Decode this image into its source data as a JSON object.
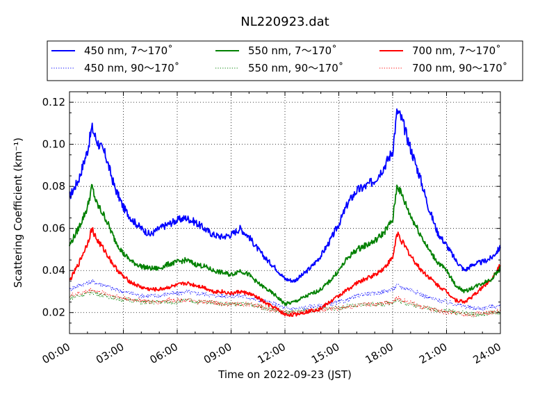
{
  "chart_data": {
    "type": "line",
    "title": "NL220923.dat",
    "xlabel": "Time on 2022-09-23 (JST)",
    "ylabel": "Scattering Coefficient (km⁻¹)",
    "xlim": [
      "00:00",
      "24:00"
    ],
    "ylim": [
      0.01,
      0.125
    ],
    "grid": true,
    "legend_position": "top",
    "x_ticks": [
      "00:00",
      "03:00",
      "06:00",
      "09:00",
      "12:00",
      "15:00",
      "18:00",
      "21:00",
      "24:00"
    ],
    "y_ticks": [
      "0.02",
      "0.04",
      "0.06",
      "0.08",
      "0.10",
      "0.12"
    ],
    "x": [
      "00:00",
      "00:30",
      "01:00",
      "01:15",
      "01:30",
      "02:00",
      "02:30",
      "03:00",
      "03:30",
      "04:00",
      "04:30",
      "05:00",
      "05:30",
      "06:00",
      "06:30",
      "07:00",
      "07:30",
      "08:00",
      "08:30",
      "09:00",
      "09:30",
      "10:00",
      "10:30",
      "11:00",
      "11:30",
      "12:00",
      "12:30",
      "13:00",
      "13:30",
      "14:00",
      "14:30",
      "15:00",
      "15:30",
      "16:00",
      "16:30",
      "17:00",
      "17:30",
      "18:00",
      "18:15",
      "18:30",
      "19:00",
      "19:30",
      "20:00",
      "20:30",
      "21:00",
      "21:30",
      "22:00",
      "22:30",
      "23:00",
      "23:30",
      "24:00"
    ],
    "series": [
      {
        "name": "450 nm, 7～170˚",
        "color": "#0000ff",
        "style": "solid",
        "values": [
          0.075,
          0.083,
          0.097,
          0.108,
          0.102,
          0.095,
          0.08,
          0.07,
          0.064,
          0.06,
          0.057,
          0.06,
          0.062,
          0.064,
          0.065,
          0.063,
          0.06,
          0.057,
          0.056,
          0.057,
          0.06,
          0.056,
          0.05,
          0.045,
          0.041,
          0.036,
          0.035,
          0.038,
          0.042,
          0.047,
          0.054,
          0.062,
          0.072,
          0.078,
          0.08,
          0.083,
          0.089,
          0.097,
          0.116,
          0.112,
          0.098,
          0.085,
          0.07,
          0.058,
          0.052,
          0.045,
          0.04,
          0.043,
          0.044,
          0.046,
          0.051
        ]
      },
      {
        "name": "450 nm, 90～170˚",
        "color": "#0000ff",
        "style": "dotted",
        "values": [
          0.031,
          0.033,
          0.034,
          0.035,
          0.034,
          0.033,
          0.031,
          0.03,
          0.029,
          0.028,
          0.028,
          0.028,
          0.029,
          0.029,
          0.03,
          0.029,
          0.029,
          0.028,
          0.028,
          0.028,
          0.028,
          0.027,
          0.026,
          0.025,
          0.024,
          0.022,
          0.022,
          0.022,
          0.023,
          0.023,
          0.024,
          0.025,
          0.026,
          0.028,
          0.029,
          0.029,
          0.03,
          0.031,
          0.033,
          0.032,
          0.031,
          0.029,
          0.027,
          0.026,
          0.025,
          0.024,
          0.023,
          0.022,
          0.022,
          0.023,
          0.023
        ]
      },
      {
        "name": "550 nm, 7～170˚",
        "color": "#008000",
        "style": "solid",
        "values": [
          0.052,
          0.06,
          0.07,
          0.08,
          0.072,
          0.065,
          0.055,
          0.048,
          0.044,
          0.042,
          0.041,
          0.041,
          0.043,
          0.044,
          0.045,
          0.043,
          0.042,
          0.04,
          0.039,
          0.038,
          0.04,
          0.038,
          0.034,
          0.031,
          0.028,
          0.024,
          0.025,
          0.027,
          0.029,
          0.031,
          0.035,
          0.04,
          0.046,
          0.05,
          0.052,
          0.054,
          0.058,
          0.064,
          0.081,
          0.076,
          0.066,
          0.058,
          0.05,
          0.044,
          0.04,
          0.033,
          0.03,
          0.032,
          0.034,
          0.036,
          0.041
        ]
      },
      {
        "name": "550 nm, 90～170˚",
        "color": "#008000",
        "style": "dotted",
        "values": [
          0.027,
          0.028,
          0.029,
          0.03,
          0.029,
          0.028,
          0.027,
          0.026,
          0.026,
          0.025,
          0.025,
          0.025,
          0.025,
          0.025,
          0.026,
          0.025,
          0.025,
          0.025,
          0.024,
          0.024,
          0.024,
          0.024,
          0.023,
          0.022,
          0.021,
          0.02,
          0.02,
          0.021,
          0.021,
          0.022,
          0.022,
          0.022,
          0.023,
          0.023,
          0.024,
          0.024,
          0.024,
          0.025,
          0.026,
          0.025,
          0.024,
          0.023,
          0.022,
          0.021,
          0.021,
          0.02,
          0.02,
          0.019,
          0.019,
          0.02,
          0.02
        ]
      },
      {
        "name": "700 nm, 7～170˚",
        "color": "#ff0000",
        "style": "solid",
        "values": [
          0.035,
          0.043,
          0.053,
          0.06,
          0.055,
          0.049,
          0.042,
          0.037,
          0.034,
          0.032,
          0.031,
          0.031,
          0.032,
          0.033,
          0.034,
          0.033,
          0.032,
          0.03,
          0.03,
          0.029,
          0.03,
          0.029,
          0.027,
          0.024,
          0.022,
          0.019,
          0.019,
          0.02,
          0.021,
          0.022,
          0.025,
          0.028,
          0.031,
          0.034,
          0.036,
          0.038,
          0.041,
          0.046,
          0.058,
          0.054,
          0.047,
          0.041,
          0.037,
          0.033,
          0.03,
          0.026,
          0.025,
          0.028,
          0.032,
          0.036,
          0.043
        ]
      },
      {
        "name": "700 nm, 90～170˚",
        "color": "#ff0000",
        "style": "dotted",
        "values": [
          0.028,
          0.029,
          0.03,
          0.031,
          0.03,
          0.029,
          0.028,
          0.027,
          0.026,
          0.026,
          0.025,
          0.025,
          0.026,
          0.026,
          0.026,
          0.025,
          0.025,
          0.025,
          0.024,
          0.024,
          0.024,
          0.024,
          0.023,
          0.022,
          0.021,
          0.02,
          0.02,
          0.02,
          0.021,
          0.021,
          0.022,
          0.022,
          0.023,
          0.023,
          0.024,
          0.024,
          0.025,
          0.025,
          0.027,
          0.026,
          0.025,
          0.023,
          0.022,
          0.021,
          0.02,
          0.02,
          0.019,
          0.019,
          0.02,
          0.02,
          0.021
        ]
      }
    ]
  }
}
